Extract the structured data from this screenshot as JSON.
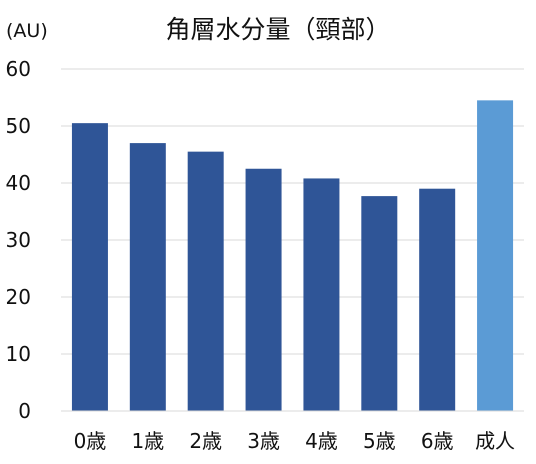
{
  "chart_data": {
    "type": "bar",
    "title": "角層水分量（頸部）",
    "unit_label": "(AU)",
    "xlabel": "",
    "ylabel": "",
    "ylim": [
      0,
      60
    ],
    "yticks": [
      "0",
      "10",
      "20",
      "30",
      "40",
      "50",
      "60"
    ],
    "categories": [
      "0歳",
      "1歳",
      "2歳",
      "3歳",
      "4歳",
      "5歳",
      "6歳",
      "成人"
    ],
    "values": [
      50.5,
      47,
      45.5,
      42.5,
      40.8,
      37.7,
      39,
      54.5
    ],
    "bar_colors": [
      "#2f5597",
      "#2f5597",
      "#2f5597",
      "#2f5597",
      "#2f5597",
      "#2f5597",
      "#2f5597",
      "#5b9bd5"
    ],
    "grid": true,
    "legend": "none"
  }
}
